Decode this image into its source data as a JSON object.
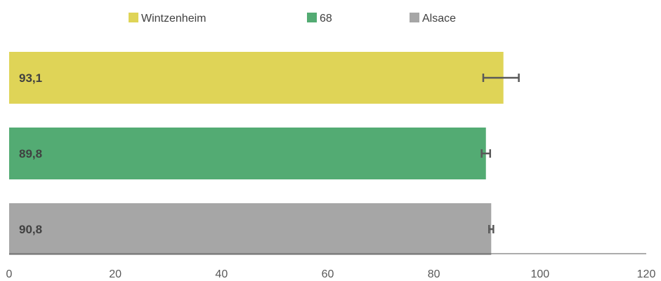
{
  "chart_data": {
    "type": "bar",
    "orientation": "horizontal",
    "title": "",
    "xlabel": "",
    "ylabel": "",
    "xlim": [
      0,
      120
    ],
    "x_ticks": [
      0,
      20,
      40,
      60,
      80,
      100,
      120
    ],
    "x_tick_labels": [
      "0",
      "20",
      "40",
      "60",
      "80",
      "100",
      "120"
    ],
    "grid": false,
    "legend_position": "top",
    "series": [
      {
        "name": "Wintzenheim",
        "value": 93.1,
        "value_label": "93,1",
        "error_low": 89.3,
        "error_high": 96.0,
        "color": "#dfd457"
      },
      {
        "name": "68",
        "value": 89.8,
        "value_label": "89,8",
        "error_low": 89.0,
        "error_high": 90.6,
        "color": "#53ab73"
      },
      {
        "name": "Alsace",
        "value": 90.8,
        "value_label": "90,8",
        "error_low": 90.4,
        "error_high": 91.2,
        "color": "#a6a6a6"
      }
    ],
    "axis_color": "#595959",
    "error_bar_color": "#595959"
  }
}
